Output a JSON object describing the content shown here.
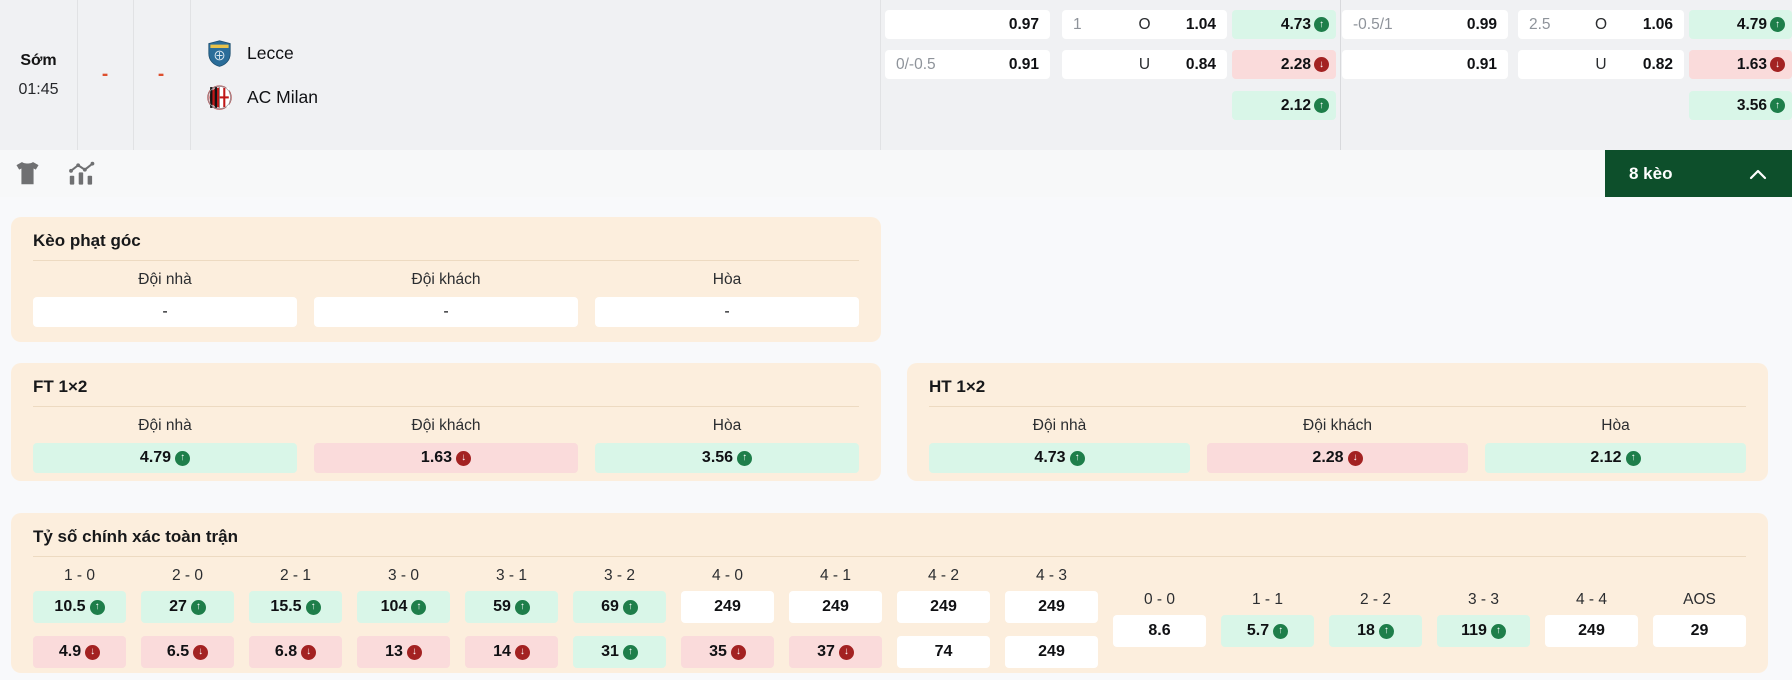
{
  "match": {
    "time_label": "Sớm",
    "time": "01:45",
    "home_score": "-",
    "away_score": "-",
    "home_team": "Lecce",
    "away_team": "AC Milan"
  },
  "top_odds": {
    "ht": {
      "hdp": [
        {
          "line": "",
          "odd": "0.97"
        },
        {
          "line": "0/-0.5",
          "odd": "0.91"
        }
      ],
      "ou": [
        {
          "line": "1",
          "side": "O",
          "odd": "1.04"
        },
        {
          "line": "",
          "side": "U",
          "odd": "0.84"
        }
      ],
      "x12": [
        {
          "odd": "4.73",
          "trend": "up"
        },
        {
          "odd": "2.28",
          "trend": "down"
        },
        {
          "odd": "2.12",
          "trend": "up"
        }
      ]
    },
    "ft": {
      "hdp": [
        {
          "line": "-0.5/1",
          "odd": "0.99"
        },
        {
          "line": "",
          "odd": "0.91"
        }
      ],
      "ou": [
        {
          "line": "2.5",
          "side": "O",
          "odd": "1.06"
        },
        {
          "line": "",
          "side": "U",
          "odd": "0.82"
        }
      ],
      "x12": [
        {
          "odd": "4.79",
          "trend": "up"
        },
        {
          "odd": "1.63",
          "trend": "down"
        },
        {
          "odd": "3.56",
          "trend": "up"
        }
      ]
    }
  },
  "toolbar": {
    "badge": "8 kèo"
  },
  "sections": {
    "corner": {
      "title": "Kèo phạt góc",
      "headers": [
        "Đội nhà",
        "Đội khách",
        "Hòa"
      ],
      "cells": [
        {
          "odd": "-",
          "trend": ""
        },
        {
          "odd": "-",
          "trend": ""
        },
        {
          "odd": "-",
          "trend": ""
        }
      ]
    },
    "ft_1x2": {
      "title": "FT 1×2",
      "headers": [
        "Đội nhà",
        "Đội khách",
        "Hòa"
      ],
      "cells": [
        {
          "odd": "4.79",
          "trend": "up"
        },
        {
          "odd": "1.63",
          "trend": "down"
        },
        {
          "odd": "3.56",
          "trend": "up"
        }
      ]
    },
    "ht_1x2": {
      "title": "HT 1×2",
      "headers": [
        "Đội nhà",
        "Đội khách",
        "Hòa"
      ],
      "cells": [
        {
          "odd": "4.73",
          "trend": "up"
        },
        {
          "odd": "2.28",
          "trend": "down"
        },
        {
          "odd": "2.12",
          "trend": "up"
        }
      ]
    },
    "correct_score": {
      "title": "Tỷ số chính xác toàn trận",
      "two_row_columns": [
        {
          "score": "1 - 0",
          "top": {
            "odd": "10.5",
            "trend": "up"
          },
          "bottom": {
            "odd": "4.9",
            "trend": "down"
          }
        },
        {
          "score": "2 - 0",
          "top": {
            "odd": "27",
            "trend": "up"
          },
          "bottom": {
            "odd": "6.5",
            "trend": "down"
          }
        },
        {
          "score": "2 - 1",
          "top": {
            "odd": "15.5",
            "trend": "up"
          },
          "bottom": {
            "odd": "6.8",
            "trend": "down"
          }
        },
        {
          "score": "3 - 0",
          "top": {
            "odd": "104",
            "trend": "up"
          },
          "bottom": {
            "odd": "13",
            "trend": "down"
          }
        },
        {
          "score": "3 - 1",
          "top": {
            "odd": "59",
            "trend": "up"
          },
          "bottom": {
            "odd": "14",
            "trend": "down"
          }
        },
        {
          "score": "3 - 2",
          "top": {
            "odd": "69",
            "trend": "up"
          },
          "bottom": {
            "odd": "31",
            "trend": "up"
          }
        },
        {
          "score": "4 - 0",
          "top": {
            "odd": "249",
            "trend": ""
          },
          "bottom": {
            "odd": "35",
            "trend": "down"
          }
        },
        {
          "score": "4 - 1",
          "top": {
            "odd": "249",
            "trend": ""
          },
          "bottom": {
            "odd": "37",
            "trend": "down"
          }
        },
        {
          "score": "4 - 2",
          "top": {
            "odd": "249",
            "trend": ""
          },
          "bottom": {
            "odd": "74",
            "trend": ""
          }
        },
        {
          "score": "4 - 3",
          "top": {
            "odd": "249",
            "trend": ""
          },
          "bottom": {
            "odd": "249",
            "trend": ""
          }
        }
      ],
      "single_row_columns": [
        {
          "score": "0 - 0",
          "cell": {
            "odd": "8.6",
            "trend": ""
          }
        },
        {
          "score": "1 - 1",
          "cell": {
            "odd": "5.7",
            "trend": "up"
          }
        },
        {
          "score": "2 - 2",
          "cell": {
            "odd": "18",
            "trend": "up"
          }
        },
        {
          "score": "3 - 3",
          "cell": {
            "odd": "119",
            "trend": "up"
          }
        },
        {
          "score": "4 - 4",
          "cell": {
            "odd": "249",
            "trend": ""
          }
        },
        {
          "score": "AOS",
          "cell": {
            "odd": "29",
            "trend": ""
          }
        }
      ]
    }
  },
  "icons": {
    "jersey": "jersey-icon",
    "stats": "stats-chart-icon",
    "collapse": "chevron-up-icon",
    "trend_up": "arrow-up-circle-icon",
    "trend_down": "arrow-down-circle-icon"
  },
  "colors": {
    "accent_dark_green": "#0d4f2b",
    "cell_up_bg": "#d9f6e8",
    "cell_down_bg": "#fadbdb",
    "trend_up": "#1e7e4a",
    "trend_down": "#a32222",
    "card_bg": "#fceedd",
    "score_dash": "#dd4f2e"
  }
}
